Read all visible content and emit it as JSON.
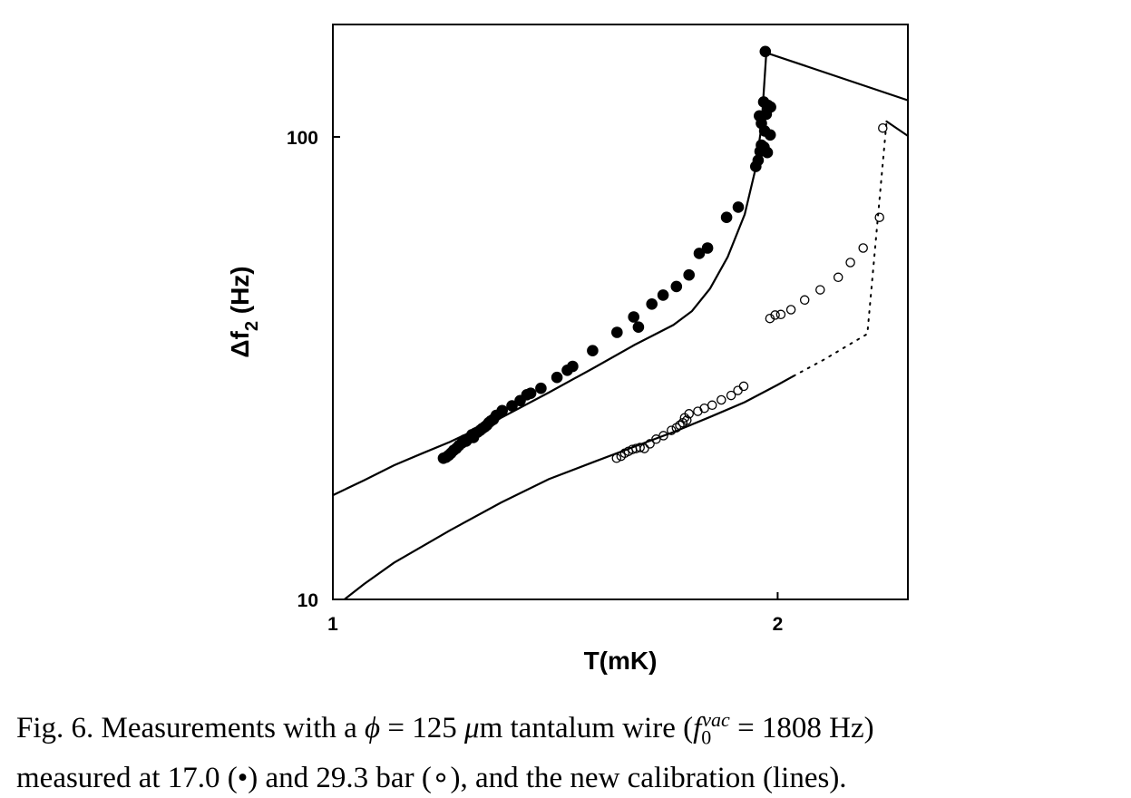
{
  "chart_data": {
    "type": "scatter",
    "xlabel": "T(mK)",
    "ylabel_main": "Δf",
    "ylabel_sub": "2",
    "ylabel_unit": " (Hz)",
    "x_scale": "log",
    "y_scale": "log",
    "xlim": [
      1.0,
      2.45
    ],
    "ylim": [
      10,
      175
    ],
    "x_ticks": [
      {
        "value": 1,
        "label": "1"
      },
      {
        "value": 2,
        "label": "2"
      }
    ],
    "y_ticks": [
      {
        "value": 10,
        "label": "10"
      },
      {
        "value": 100,
        "label": "100"
      }
    ],
    "grid": false,
    "series": [
      {
        "marker": "filled",
        "pressure": "17.0",
        "points": [
          [
            1.188,
            20.2
          ],
          [
            1.193,
            20.3
          ],
          [
            1.198,
            20.5
          ],
          [
            1.202,
            20.7
          ],
          [
            1.207,
            21.0
          ],
          [
            1.212,
            21.2
          ],
          [
            1.217,
            21.5
          ],
          [
            1.223,
            21.8
          ],
          [
            1.228,
            22.1
          ],
          [
            1.231,
            22.0
          ],
          [
            1.236,
            22.3
          ],
          [
            1.242,
            22.7
          ],
          [
            1.245,
            22.4
          ],
          [
            1.249,
            22.9
          ],
          [
            1.253,
            23.0
          ],
          [
            1.258,
            23.2
          ],
          [
            1.262,
            23.4
          ],
          [
            1.267,
            23.6
          ],
          [
            1.271,
            23.8
          ],
          [
            1.275,
            24.1
          ],
          [
            1.279,
            24.3
          ],
          [
            1.284,
            24.5
          ],
          [
            1.29,
            25.0
          ],
          [
            1.302,
            25.6
          ],
          [
            1.322,
            26.2
          ],
          [
            1.339,
            26.9
          ],
          [
            1.353,
            27.7
          ],
          [
            1.361,
            27.9
          ],
          [
            1.383,
            28.6
          ],
          [
            1.418,
            30.2
          ],
          [
            1.441,
            31.3
          ],
          [
            1.453,
            31.9
          ],
          [
            1.499,
            34.5
          ],
          [
            1.557,
            37.8
          ],
          [
            1.598,
            40.8
          ],
          [
            1.61,
            38.8
          ],
          [
            1.644,
            43.5
          ],
          [
            1.673,
            45.5
          ],
          [
            1.708,
            47.5
          ],
          [
            1.742,
            50.3
          ],
          [
            1.77,
            56.0
          ],
          [
            1.793,
            57.5
          ],
          [
            1.847,
            67.0
          ],
          [
            1.881,
            70.5
          ],
          [
            1.933,
            86.3
          ],
          [
            1.94,
            89.0
          ],
          [
            1.946,
            93.0
          ],
          [
            1.95,
            96.0
          ],
          [
            1.958,
            95.0
          ],
          [
            1.968,
            92.5
          ],
          [
            1.96,
            103.0
          ],
          [
            1.977,
            101.0
          ],
          [
            1.95,
            107.0
          ],
          [
            1.965,
            112.0
          ],
          [
            1.944,
            111.0
          ],
          [
            1.97,
            117.0
          ],
          [
            1.957,
            119.0
          ],
          [
            1.978,
            116.0
          ],
          [
            1.962,
            153.0
          ]
        ]
      },
      {
        "marker": "open",
        "pressure": "29.3",
        "points": [
          [
            1.556,
            20.2
          ],
          [
            1.567,
            20.4
          ],
          [
            1.576,
            20.7
          ],
          [
            1.585,
            20.9
          ],
          [
            1.595,
            21.1
          ],
          [
            1.604,
            21.2
          ],
          [
            1.614,
            21.3
          ],
          [
            1.625,
            21.2
          ],
          [
            1.639,
            21.7
          ],
          [
            1.655,
            22.2
          ],
          [
            1.674,
            22.6
          ],
          [
            1.695,
            23.2
          ],
          [
            1.708,
            23.5
          ],
          [
            1.717,
            23.8
          ],
          [
            1.725,
            24.1
          ],
          [
            1.73,
            24.7
          ],
          [
            1.736,
            24.4
          ],
          [
            1.742,
            25.2
          ],
          [
            1.766,
            25.5
          ],
          [
            1.784,
            25.9
          ],
          [
            1.806,
            26.3
          ],
          [
            1.832,
            27.0
          ],
          [
            1.86,
            27.6
          ],
          [
            1.88,
            28.3
          ],
          [
            1.897,
            28.9
          ],
          [
            1.976,
            40.5
          ],
          [
            1.992,
            41.2
          ],
          [
            2.01,
            41.3
          ],
          [
            2.042,
            42.3
          ],
          [
            2.086,
            44.4
          ],
          [
            2.137,
            46.7
          ],
          [
            2.198,
            49.7
          ],
          [
            2.24,
            53.5
          ],
          [
            2.285,
            57.5
          ],
          [
            2.344,
            67.0
          ],
          [
            2.356,
            104.5
          ]
        ]
      }
    ],
    "lines": [
      {
        "style": "solid",
        "points": [
          [
            1.0,
            16.8
          ],
          [
            1.05,
            18.1
          ],
          [
            1.1,
            19.5
          ],
          [
            1.15,
            20.7
          ],
          [
            1.2,
            21.9
          ],
          [
            1.3,
            24.7
          ],
          [
            1.4,
            28.0
          ],
          [
            1.5,
            31.6
          ],
          [
            1.6,
            35.5
          ],
          [
            1.7,
            39.2
          ],
          [
            1.75,
            42.0
          ],
          [
            1.8,
            47.0
          ],
          [
            1.85,
            55.0
          ],
          [
            1.9,
            68.0
          ],
          [
            1.93,
            84.0
          ],
          [
            1.95,
            105.0
          ],
          [
            1.965,
            152.0
          ],
          [
            2.45,
            120.0
          ]
        ]
      },
      {
        "style": "solid",
        "points": [
          [
            1.01,
            9.8
          ],
          [
            1.05,
            10.8
          ],
          [
            1.1,
            12.0
          ],
          [
            1.2,
            14.1
          ],
          [
            1.3,
            16.2
          ],
          [
            1.4,
            18.2
          ],
          [
            1.5,
            19.8
          ],
          [
            1.6,
            21.4
          ],
          [
            1.7,
            23.0
          ],
          [
            1.8,
            24.8
          ],
          [
            1.9,
            26.7
          ],
          [
            2.0,
            29.1
          ],
          [
            2.05,
            30.4
          ]
        ]
      },
      {
        "style": "dotted",
        "points": [
          [
            2.05,
            30.4
          ],
          [
            2.15,
            33.0
          ],
          [
            2.3,
            37.5
          ],
          [
            2.37,
            108.0
          ]
        ]
      },
      {
        "style": "solid",
        "points": [
          [
            2.37,
            108.0
          ],
          [
            2.45,
            100.5
          ]
        ]
      }
    ]
  },
  "caption": {
    "fig": "Fig. 6.",
    "t1": " Measurements with a ",
    "phi": "ϕ",
    "t2": " = 125 ",
    "mu": "μ",
    "t3": "m tantalum wire (",
    "f": "f",
    "f_sub": "0",
    "f_sup": "vac",
    "t4": " = 1808 Hz)",
    "t5": "measured at 17.0 (•) and 29.3 bar (∘), and the new calibration (lines)."
  }
}
